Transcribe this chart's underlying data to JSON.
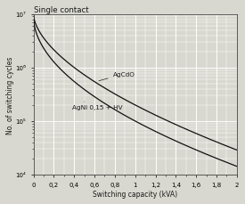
{
  "title": "Single contact",
  "xlabel": "Switching capacity (kVA)",
  "ylabel": "No. of switching cycles",
  "xlim": [
    0,
    2
  ],
  "ylim_log": [
    4,
    7
  ],
  "xticks": [
    0,
    0.2,
    0.4,
    0.6,
    0.8,
    1.0,
    1.2,
    1.4,
    1.6,
    1.8,
    2.0
  ],
  "xtick_labels": [
    "0",
    "0,2",
    "0,4",
    "0,6",
    "0,8",
    "1",
    "1,2",
    "1,4",
    "1,6",
    "1,8",
    "2"
  ],
  "ytick_labels": [
    "10⁴",
    "10⁵",
    "10⁶",
    "10⁷"
  ],
  "ytick_values": [
    10000,
    100000,
    1000000,
    10000000
  ],
  "curve1_label": "AgCdO",
  "curve2_label": "AgNi 0,15 + HV",
  "bg_color": "#d8d8d0",
  "line_color": "#111111",
  "grid_color": "#ffffff",
  "title_color": "#1a1a1a",
  "label_fontsize": 5.5,
  "title_fontsize": 6.2,
  "tick_fontsize": 5.0,
  "annotation_fontsize": 5.2
}
